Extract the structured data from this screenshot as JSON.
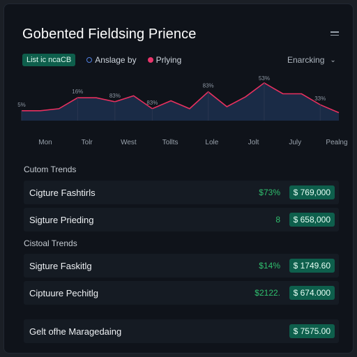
{
  "header": {
    "title": "Gobented Fieldsing Prience",
    "menu_icon": "hamburger-icon"
  },
  "legend": {
    "pill_label": "List ic ncaCB",
    "items": [
      {
        "label": "Anslage by",
        "color": "#4f7fe0"
      },
      {
        "label": "Prlying",
        "color": "#e9356b"
      }
    ]
  },
  "dropdown": {
    "label": "Enarcking",
    "icon": "chevron-down-icon"
  },
  "chart_data": {
    "type": "area",
    "categories": [
      "Mon",
      "Tolr",
      "West",
      "Tollts",
      "Lole",
      "Jolt",
      "July",
      "Pealng"
    ],
    "x": [
      0,
      1,
      2,
      3,
      4,
      5,
      6,
      7,
      8,
      9,
      10,
      11,
      12,
      13,
      14,
      15,
      16,
      17
    ],
    "values": [
      10,
      10,
      12,
      23,
      23,
      19,
      25,
      12,
      20,
      12,
      29,
      14,
      24,
      38,
      27,
      27,
      16,
      8
    ],
    "point_labels": [
      {
        "x": 0,
        "text": "5%"
      },
      {
        "x": 3,
        "text": "16%"
      },
      {
        "x": 5,
        "text": "83%"
      },
      {
        "x": 7,
        "text": "83%"
      },
      {
        "x": 10,
        "text": "83%"
      },
      {
        "x": 13,
        "text": "53%"
      },
      {
        "x": 16,
        "text": "33%"
      }
    ],
    "ylim": [
      0,
      40
    ],
    "grid": false,
    "colors": {
      "line": "#e8305f",
      "fill": "#1a2b46"
    }
  },
  "sections": [
    {
      "title": "Cutom Trends",
      "rows": [
        {
          "label": "Cigture Fashtirls",
          "pct": "$73%",
          "value": "$ 769,000"
        },
        {
          "label": "Sigture Prieding",
          "pct": "8",
          "value": "$ 658,000"
        }
      ]
    },
    {
      "title": "Cistoal Trends",
      "rows": [
        {
          "label": "Sigture Faskitlg",
          "pct": "$14%",
          "value": "$ 1749.60"
        },
        {
          "label": "Ciptuure Pechitlg",
          "pct": "$2122.",
          "value": "$ 674.000"
        }
      ]
    }
  ],
  "footer_row": {
    "label": "Gelt ofhe Maragedaing",
    "value": "$ 7575.00"
  }
}
